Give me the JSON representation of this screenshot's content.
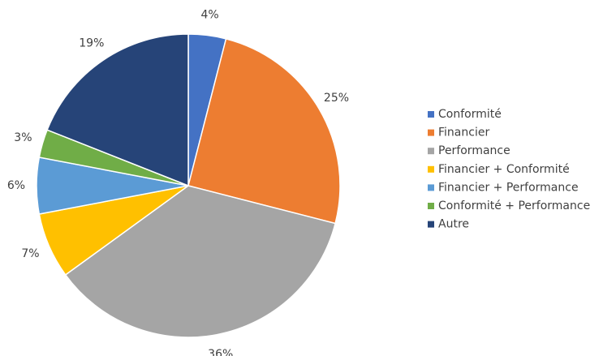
{
  "chart_data": {
    "type": "pie",
    "categories": [
      "Conformité",
      "Financier",
      "Performance",
      "Financier + Conformité",
      "Financier + Performance",
      "Conformité + Performance",
      "Autre"
    ],
    "values": [
      4,
      25,
      36,
      7,
      6,
      3,
      19
    ],
    "value_labels": [
      "4%",
      "25%",
      "36%",
      "7%",
      "6%",
      "3%",
      "19%"
    ],
    "colors": [
      "#4472c4",
      "#ed7d31",
      "#a5a5a5",
      "#ffc000",
      "#5b9bd5",
      "#70ad47",
      "#264478"
    ],
    "legend": "right"
  }
}
